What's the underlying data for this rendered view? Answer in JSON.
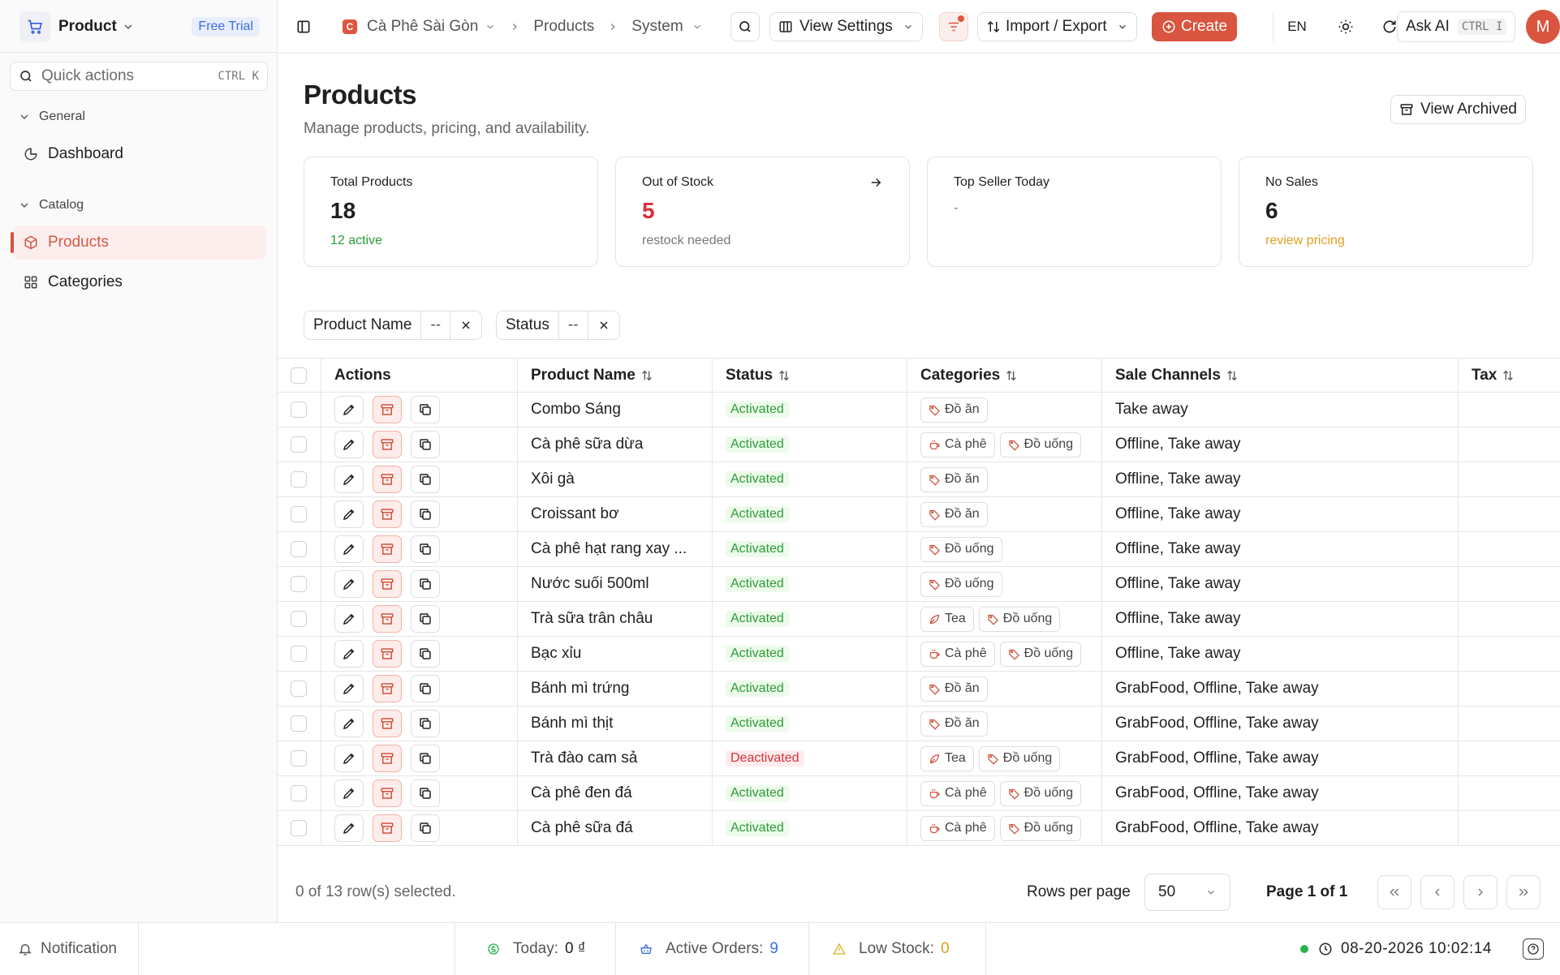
{
  "sidebar": {
    "app_name": "Product",
    "trial_badge": "Free Trial",
    "quick_actions": {
      "placeholder": "Quick actions",
      "shortcut": "CTRL K"
    },
    "groups": [
      {
        "label": "General",
        "items": [
          {
            "label": "Dashboard",
            "icon": "pie-chart-icon"
          }
        ]
      },
      {
        "label": "Catalog",
        "items": [
          {
            "label": "Products",
            "icon": "box-icon",
            "active": true
          },
          {
            "label": "Categories",
            "icon": "grid-icon"
          }
        ]
      }
    ]
  },
  "topbar": {
    "org_initial": "C",
    "org_name": "Cà Phê Sài Gòn",
    "breadcrumb": [
      "Products",
      "System"
    ],
    "view_settings": "View Settings",
    "import_export": "Import / Export",
    "create": "Create",
    "language": "EN",
    "ask_ai": "Ask AI",
    "ask_ai_shortcut": "CTRL I",
    "avatar_initial": "M"
  },
  "header": {
    "title": "Products",
    "subtitle": "Manage products, pricing, and availability.",
    "view_archived": "View Archived"
  },
  "cards": [
    {
      "label": "Total Products",
      "value": "18",
      "hint": "12 active",
      "value_color": "#1f1f1f",
      "hint_color": "#2e9b3a"
    },
    {
      "label": "Out of Stock",
      "value": "5",
      "hint": "restock needed",
      "value_color": "#d7303a",
      "hint_color": "#777777"
    },
    {
      "label": "Top Seller Today",
      "value": "",
      "hint": "-",
      "value_color": "#1f1f1f",
      "hint_color": "#777777"
    },
    {
      "label": "No Sales",
      "value": "6",
      "hint": "review pricing",
      "value_color": "#1f1f1f",
      "hint_color": "#e0a020"
    }
  ],
  "filters": [
    {
      "label": "Product Name",
      "value": "--"
    },
    {
      "label": "Status",
      "value": "--"
    }
  ],
  "table": {
    "columns": [
      "Actions",
      "Product Name",
      "Status",
      "Categories",
      "Sale Channels",
      "Tax"
    ],
    "rows": [
      {
        "name": "Combo Sáng",
        "status": "Activated",
        "categories": [
          {
            "label": "Đồ ăn",
            "icon": "tag"
          }
        ],
        "channels": "Take away",
        "tax": ""
      },
      {
        "name": "Cà phê sữa dừa",
        "status": "Activated",
        "categories": [
          {
            "label": "Cà phê",
            "icon": "cup"
          },
          {
            "label": "Đồ uống",
            "icon": "tag"
          }
        ],
        "channels": "Offline, Take away",
        "tax": ""
      },
      {
        "name": "Xôi gà",
        "status": "Activated",
        "categories": [
          {
            "label": "Đồ ăn",
            "icon": "tag"
          }
        ],
        "channels": "Offline, Take away",
        "tax": ""
      },
      {
        "name": "Croissant bơ",
        "status": "Activated",
        "categories": [
          {
            "label": "Đồ ăn",
            "icon": "tag"
          }
        ],
        "channels": "Offline, Take away",
        "tax": ""
      },
      {
        "name": "Cà phê hạt rang xay ...",
        "status": "Activated",
        "categories": [
          {
            "label": "Đồ uống",
            "icon": "tag"
          }
        ],
        "channels": "Offline, Take away",
        "tax": ""
      },
      {
        "name": "Nước suối 500ml",
        "status": "Activated",
        "categories": [
          {
            "label": "Đồ uống",
            "icon": "tag"
          }
        ],
        "channels": "Offline, Take away",
        "tax": ""
      },
      {
        "name": "Trà sữa trân châu",
        "status": "Activated",
        "categories": [
          {
            "label": "Tea",
            "icon": "leaf"
          },
          {
            "label": "Đồ uống",
            "icon": "tag"
          }
        ],
        "channels": "Offline, Take away",
        "tax": ""
      },
      {
        "name": "Bạc xỉu",
        "status": "Activated",
        "categories": [
          {
            "label": "Cà phê",
            "icon": "cup"
          },
          {
            "label": "Đồ uống",
            "icon": "tag"
          }
        ],
        "channels": "Offline, Take away",
        "tax": ""
      },
      {
        "name": "Bánh mì trứng",
        "status": "Activated",
        "categories": [
          {
            "label": "Đồ ăn",
            "icon": "tag"
          }
        ],
        "channels": "GrabFood, Offline, Take away",
        "tax": ""
      },
      {
        "name": "Bánh mì thịt",
        "status": "Activated",
        "categories": [
          {
            "label": "Đồ ăn",
            "icon": "tag"
          }
        ],
        "channels": "GrabFood, Offline, Take away",
        "tax": ""
      },
      {
        "name": "Trà đào cam sả",
        "status": "Deactivated",
        "categories": [
          {
            "label": "Tea",
            "icon": "leaf"
          },
          {
            "label": "Đồ uống",
            "icon": "tag"
          }
        ],
        "channels": "GrabFood, Offline, Take away",
        "tax": ""
      },
      {
        "name": "Cà phê đen đá",
        "status": "Activated",
        "categories": [
          {
            "label": "Cà phê",
            "icon": "cup"
          },
          {
            "label": "Đồ uống",
            "icon": "tag"
          }
        ],
        "channels": "GrabFood, Offline, Take away",
        "tax": ""
      },
      {
        "name": "Cà phê sữa đá",
        "status": "Activated",
        "categories": [
          {
            "label": "Cà phê",
            "icon": "cup"
          },
          {
            "label": "Đồ uống",
            "icon": "tag"
          }
        ],
        "channels": "GrabFood, Offline, Take away",
        "tax": ""
      }
    ]
  },
  "pagination": {
    "selected": "0 of 13 row(s) selected.",
    "rows_per_page_label": "Rows per page",
    "rows_per_page": "50",
    "page": "Page 1 of 1"
  },
  "footer": {
    "notification": "Notification",
    "today_label": "Today:",
    "today_value": "0 ₫",
    "orders_label": "Active Orders:",
    "orders_value": "9",
    "low_stock_label": "Low Stock:",
    "low_stock_value": "0",
    "datetime": "08-20-2026 10:02:14"
  }
}
